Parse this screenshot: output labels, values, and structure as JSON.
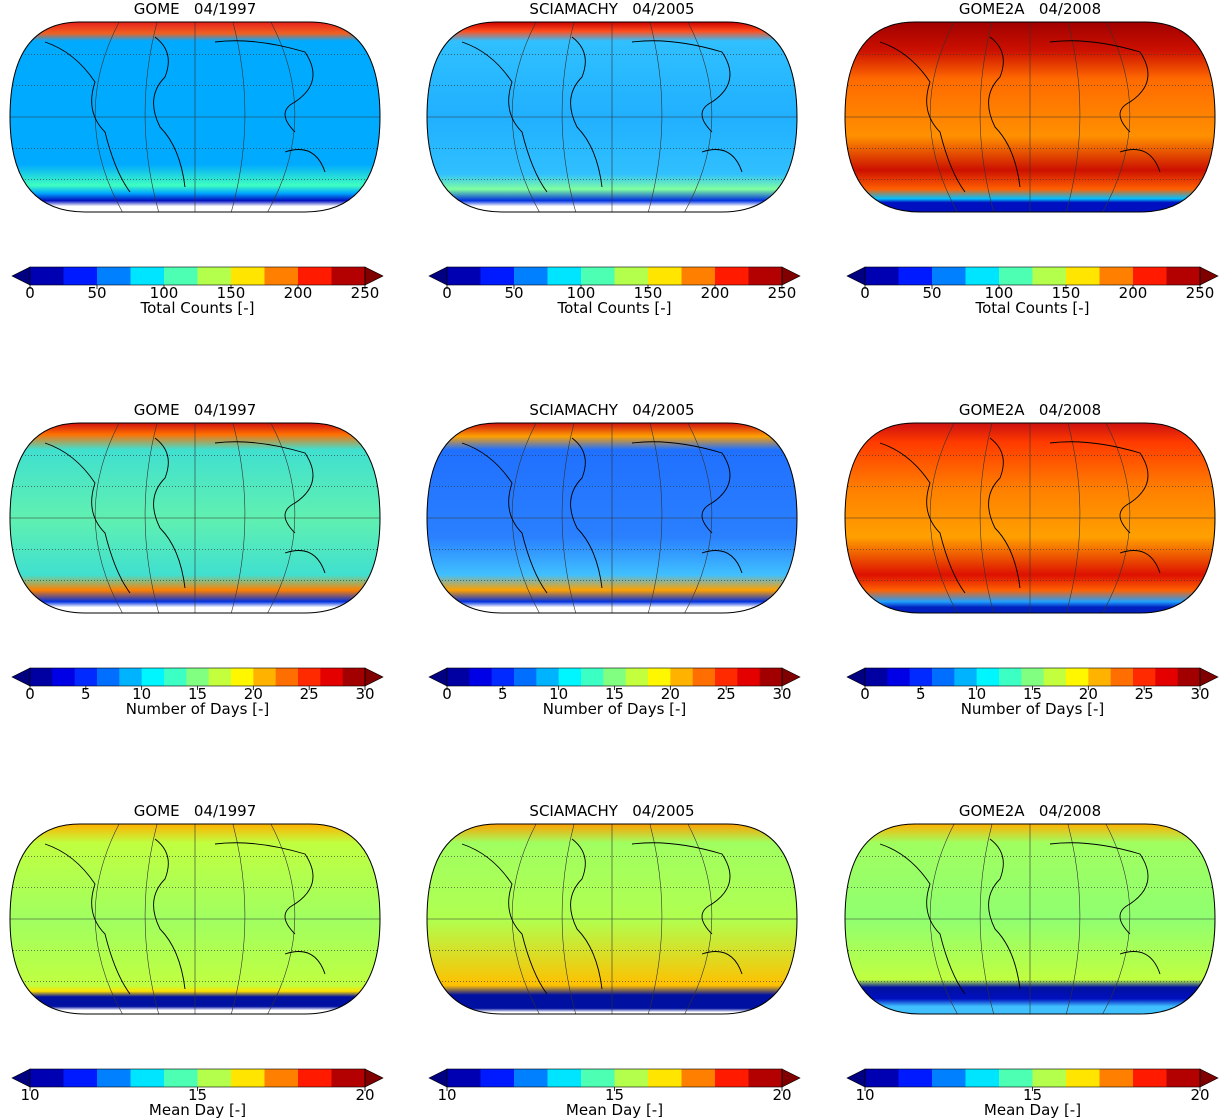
{
  "panels": [
    {
      "title": "GOME   04/1997",
      "colorbar": {
        "ticks": [
          0,
          50,
          100,
          150,
          200,
          250
        ],
        "label": "Total Counts [-]"
      }
    },
    {
      "title": "SCIAMACHY   04/2005",
      "colorbar": {
        "ticks": [
          0,
          50,
          100,
          150,
          200,
          250
        ],
        "label": "Total Counts [-]"
      }
    },
    {
      "title": "GOME2A   04/2008",
      "colorbar": {
        "ticks": [
          0,
          50,
          100,
          150,
          200,
          250
        ],
        "label": "Total Counts [-]"
      }
    },
    {
      "title": "GOME   04/1997",
      "colorbar": {
        "ticks": [
          0,
          5,
          10,
          15,
          20,
          25,
          30
        ],
        "label": "Number of Days [-]"
      }
    },
    {
      "title": "SCIAMACHY   04/2005",
      "colorbar": {
        "ticks": [
          0,
          5,
          10,
          15,
          20,
          25,
          30
        ],
        "label": "Number of Days [-]"
      }
    },
    {
      "title": "GOME2A   04/2008",
      "colorbar": {
        "ticks": [
          0,
          5,
          10,
          15,
          20,
          25,
          30
        ],
        "label": "Number of Days [-]"
      }
    },
    {
      "title": "GOME   04/1997",
      "colorbar": {
        "ticks": [
          10,
          15,
          20
        ],
        "label": "Mean Day [-]"
      }
    },
    {
      "title": "SCIAMACHY   04/2005",
      "colorbar": {
        "ticks": [
          10,
          15,
          20
        ],
        "label": "Mean Day [-]"
      }
    },
    {
      "title": "GOME2A   04/2008",
      "colorbar": {
        "ticks": [
          10,
          15,
          20
        ],
        "label": "Mean Day [-]"
      }
    }
  ]
}
